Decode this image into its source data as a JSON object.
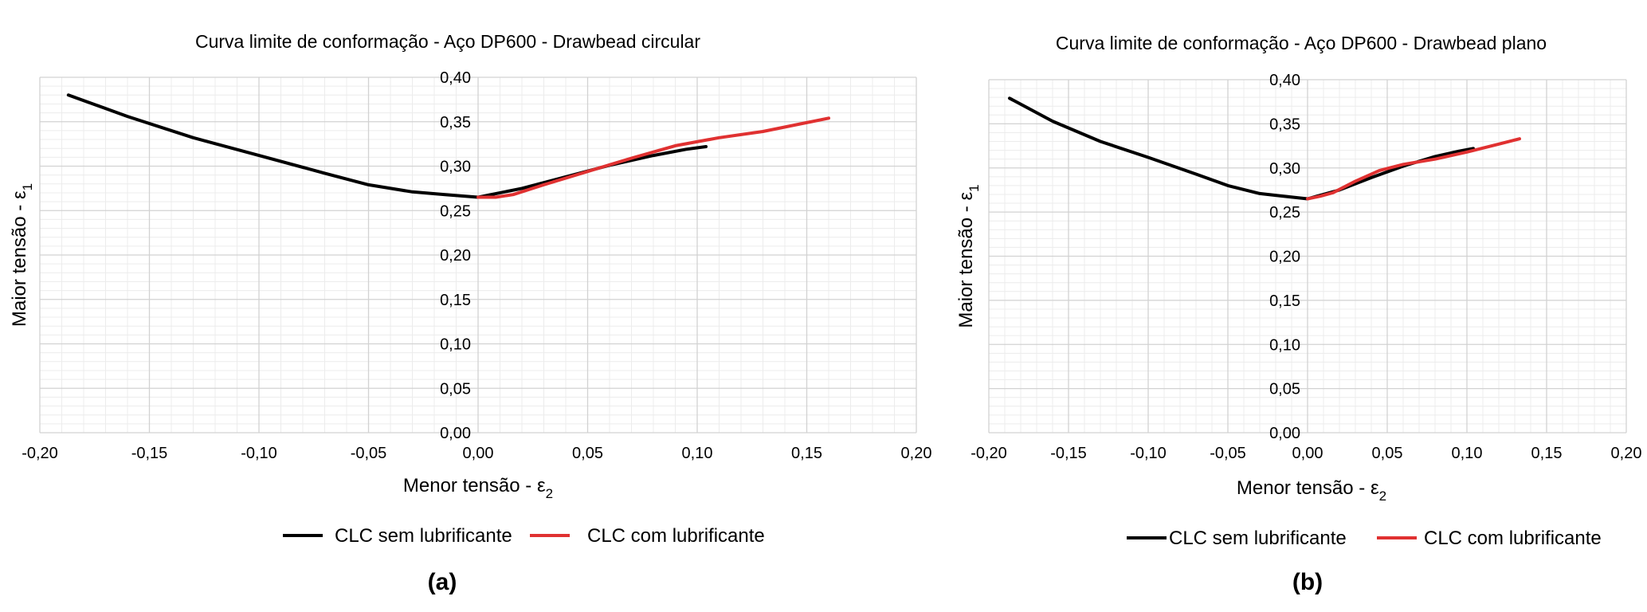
{
  "chart_data": [
    {
      "type": "line",
      "panel_label": "(a)",
      "title": "Curva limite de conformação - Aço DP600 - Drawbead circular",
      "xlabel": "Menor tensão - ε",
      "xlabel_sub": "2",
      "ylabel": "Maior tensão - ε",
      "ylabel_sub": "1",
      "xlim": [
        -0.2,
        0.2
      ],
      "ylim": [
        0.0,
        0.4
      ],
      "x_ticks": [
        "-0,20",
        "-0,15",
        "-0,10",
        "-0,05",
        "0,00",
        "0,05",
        "0,10",
        "0,15",
        "0,20"
      ],
      "y_ticks": [
        "0,00",
        "0,05",
        "0,10",
        "0,15",
        "0,20",
        "0,25",
        "0,30",
        "0,35",
        "0,40"
      ],
      "grid": true,
      "legend_position": "bottom",
      "series": [
        {
          "name": "CLC sem lubrificante",
          "color": "#000000",
          "x": [
            -0.187,
            -0.16,
            -0.13,
            -0.1,
            -0.07,
            -0.05,
            -0.03,
            -0.015,
            0.0,
            0.02,
            0.04,
            0.06,
            0.08,
            0.095,
            0.104
          ],
          "y": [
            0.38,
            0.356,
            0.332,
            0.312,
            0.292,
            0.279,
            0.271,
            0.268,
            0.265,
            0.275,
            0.288,
            0.301,
            0.312,
            0.319,
            0.322
          ]
        },
        {
          "name": "CLC com lubrificante",
          "color": "#e03131",
          "x": [
            0.0,
            0.008,
            0.016,
            0.03,
            0.05,
            0.07,
            0.09,
            0.11,
            0.13,
            0.16
          ],
          "y": [
            0.265,
            0.265,
            0.268,
            0.279,
            0.294,
            0.309,
            0.323,
            0.332,
            0.339,
            0.354
          ]
        }
      ]
    },
    {
      "type": "line",
      "panel_label": "(b)",
      "title": "Curva limite de conformação - Aço DP600 - Drawbead plano",
      "xlabel": "Menor tensão - ε",
      "xlabel_sub": "2",
      "ylabel": "Maior tensão - ε",
      "ylabel_sub": "1",
      "xlim": [
        -0.2,
        0.2
      ],
      "ylim": [
        0.0,
        0.4
      ],
      "x_ticks": [
        "-0,20",
        "-0,15",
        "-0,10",
        "-0,05",
        "0,00",
        "0,05",
        "0,10",
        "0,15",
        "0,20"
      ],
      "y_ticks": [
        "0,00",
        "0,05",
        "0,10",
        "0,15",
        "0,20",
        "0,25",
        "0,30",
        "0,35",
        "0,40"
      ],
      "grid": true,
      "legend_position": "bottom",
      "series": [
        {
          "name": "CLC sem lubrificante",
          "color": "#000000",
          "x": [
            -0.187,
            -0.16,
            -0.13,
            -0.1,
            -0.07,
            -0.05,
            -0.03,
            -0.015,
            0.0,
            0.02,
            0.04,
            0.06,
            0.08,
            0.095,
            0.104
          ],
          "y": [
            0.379,
            0.353,
            0.33,
            0.312,
            0.293,
            0.28,
            0.271,
            0.268,
            0.265,
            0.275,
            0.289,
            0.302,
            0.313,
            0.319,
            0.322
          ]
        },
        {
          "name": "CLC com lubrificante",
          "color": "#e03131",
          "x": [
            0.0,
            0.008,
            0.016,
            0.03,
            0.045,
            0.06,
            0.08,
            0.1,
            0.12,
            0.133
          ],
          "y": [
            0.265,
            0.268,
            0.272,
            0.285,
            0.297,
            0.304,
            0.31,
            0.318,
            0.327,
            0.333
          ]
        }
      ]
    }
  ]
}
